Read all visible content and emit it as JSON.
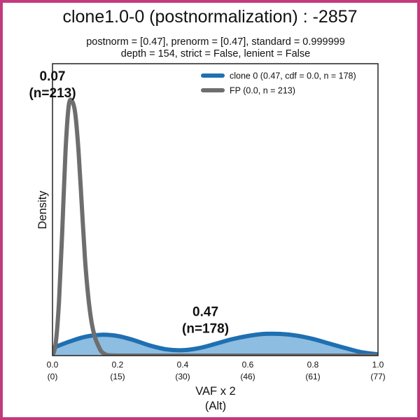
{
  "chart_data": {
    "type": "line",
    "title": "clone1.0-0 (postnormalization) : -2857",
    "subtitle_lines": [
      "postnorm = [0.47], prenorm = [0.47], standard = 0.999999",
      "depth = 154, strict = False, lenient = False"
    ],
    "xlabel_lines": [
      "VAF x 2",
      "(Alt)"
    ],
    "ylabel": "Density",
    "xlim": [
      0.0,
      1.0
    ],
    "ylim": [
      0,
      7.0
    ],
    "x_ticks": [
      {
        "value": 0.0,
        "label": "0.0",
        "sublabel": "(0)"
      },
      {
        "value": 0.2,
        "label": "0.2",
        "sublabel": "(15)"
      },
      {
        "value": 0.4,
        "label": "0.4",
        "sublabel": "(30)"
      },
      {
        "value": 0.6,
        "label": "0.6",
        "sublabel": "(46)"
      },
      {
        "value": 0.8,
        "label": "0.8",
        "sublabel": "(61)"
      },
      {
        "value": 1.0,
        "label": "1.0",
        "sublabel": "(77)"
      }
    ],
    "legend_position": "top-right",
    "series": [
      {
        "name": "clone 0 (0.47, cdf = 0.0, n = 178)",
        "color": "#1f6fb2",
        "fill": "#8dbde0",
        "filled": true,
        "x": [
          0.0,
          0.05,
          0.1,
          0.15,
          0.2,
          0.25,
          0.3,
          0.35,
          0.4,
          0.45,
          0.5,
          0.55,
          0.6,
          0.65,
          0.7,
          0.75,
          0.8,
          0.85,
          0.9,
          0.95,
          1.0
        ],
        "y": [
          0.18,
          0.33,
          0.45,
          0.5,
          0.47,
          0.37,
          0.24,
          0.15,
          0.13,
          0.18,
          0.28,
          0.39,
          0.47,
          0.52,
          0.52,
          0.48,
          0.4,
          0.29,
          0.18,
          0.08,
          0.03
        ]
      },
      {
        "name": "FP (0.0, n = 213)",
        "color": "#6e6e6e",
        "filled": false,
        "x": [
          0.0,
          0.01,
          0.02,
          0.03,
          0.04,
          0.05,
          0.06,
          0.07,
          0.08,
          0.09,
          0.1,
          0.11,
          0.12,
          0.13,
          0.14,
          0.15,
          0.16,
          0.17,
          0.2,
          0.3,
          0.5,
          0.7,
          1.0
        ],
        "y": [
          0.0,
          0.3,
          1.3,
          3.0,
          4.9,
          6.0,
          6.1,
          5.8,
          4.9,
          3.6,
          2.3,
          1.4,
          0.8,
          0.45,
          0.25,
          0.1,
          0.04,
          0.01,
          0.0,
          0.0,
          0.0,
          0.0,
          0.0
        ]
      }
    ],
    "annotations": [
      {
        "value_label": "0.07",
        "count_label": "(n=213)",
        "x": 0.0,
        "y": 6.6
      },
      {
        "value_label": "0.47",
        "count_label": "(n=178)",
        "x": 0.47,
        "y": 0.95
      }
    ]
  }
}
